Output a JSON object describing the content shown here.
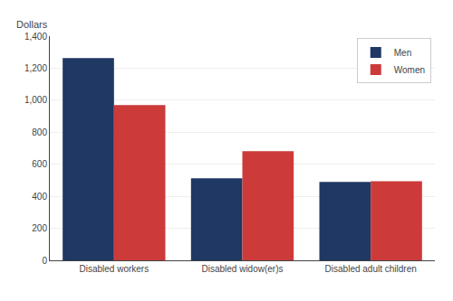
{
  "chart_data": {
    "type": "bar",
    "categories": [
      "Disabled workers",
      "Disabled widow(er)s",
      "Disabled adult children"
    ],
    "series": [
      {
        "name": "Men",
        "color": "#1f3864",
        "values": [
          1263,
          513,
          490
        ]
      },
      {
        "name": "Women",
        "color": "#cd3a3a",
        "values": [
          970,
          681,
          494
        ]
      }
    ],
    "ylabel": "Dollars",
    "ylim": [
      0,
      1400
    ],
    "yticks": [
      0,
      200,
      400,
      600,
      800,
      {
        "value": 1000,
        "label": "1,000"
      },
      {
        "value": 1200,
        "label": "1,200"
      },
      {
        "value": 1400,
        "label": "1,400"
      }
    ],
    "grid": true,
    "legend": "upper right"
  }
}
